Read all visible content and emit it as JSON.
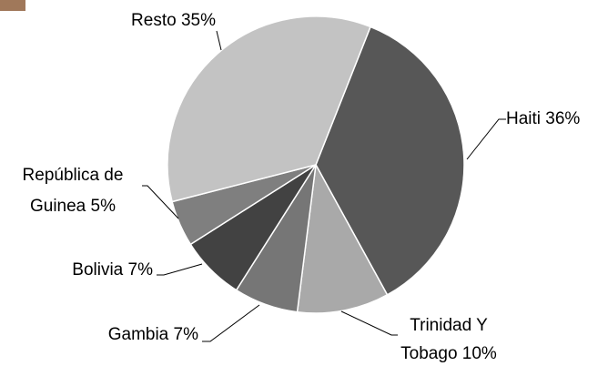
{
  "chart_data": {
    "type": "pie",
    "categories": [
      "Haiti",
      "Trinidad Y Tobago",
      "Gambia",
      "Bolivia",
      "República de Guinea",
      "Resto"
    ],
    "values": [
      36,
      10,
      7,
      7,
      5,
      35
    ],
    "value_labels": [
      "36%",
      "10%",
      "7%",
      "7%",
      "5%",
      "35%"
    ],
    "colors": [
      "#575757",
      "#a9a9a9",
      "#767676",
      "#424242",
      "#7f7f7f",
      "#c3c3c3"
    ]
  }
}
